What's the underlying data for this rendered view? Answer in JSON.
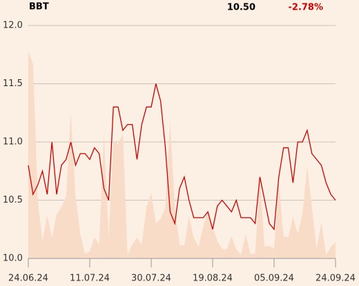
{
  "chart_data": {
    "type": "line",
    "header": {
      "symbol": "BBT",
      "last": "10.50",
      "change": "-2.78%"
    },
    "categories": [
      "24.06.24",
      null,
      null,
      null,
      null,
      null,
      null,
      null,
      null,
      null,
      null,
      null,
      null,
      "11.07.24",
      null,
      null,
      null,
      null,
      null,
      null,
      null,
      null,
      null,
      null,
      null,
      null,
      "30.07.24",
      null,
      null,
      null,
      null,
      null,
      null,
      null,
      null,
      null,
      null,
      null,
      null,
      "19.08.24",
      null,
      null,
      null,
      null,
      null,
      null,
      null,
      null,
      null,
      null,
      null,
      null,
      "05.09.24",
      null,
      null,
      null,
      null,
      null,
      null,
      null,
      null,
      null,
      null,
      null,
      null,
      "24.09.24"
    ],
    "series": [
      {
        "color": "#f9dcc8",
        "fill": true,
        "values": [
          11.78,
          11.67,
          10.5,
          10.15,
          10.37,
          10.18,
          10.38,
          10.44,
          10.53,
          11.26,
          10.53,
          10.21,
          10.04,
          10.06,
          10.18,
          10.12,
          11.08,
          10.18,
          11.01,
          10.98,
          11.07,
          10.03,
          10.12,
          10.18,
          10.12,
          10.44,
          10.56,
          10.3,
          10.34,
          10.44,
          11.17,
          10.44,
          10.12,
          10.11,
          10.36,
          10.18,
          10.1,
          10.27,
          10.41,
          10.27,
          10.15,
          10.08,
          10.08,
          10.19,
          10.08,
          10.03,
          10.21,
          10.04,
          10.04,
          10.68,
          10.1,
          10.11,
          10.08,
          10.65,
          10.19,
          10.18,
          10.36,
          10.21,
          10.38,
          10.79,
          10.44,
          10.08,
          10.31,
          10.03,
          10.1,
          10.14
        ]
      },
      {
        "color": "#cc0000",
        "fill": false,
        "values": [
          10.8,
          10.55,
          10.63,
          10.75,
          10.55,
          11.0,
          10.55,
          10.8,
          10.85,
          11.0,
          10.8,
          10.9,
          10.9,
          10.85,
          10.95,
          10.9,
          10.6,
          10.5,
          11.3,
          11.3,
          11.1,
          11.15,
          11.15,
          10.85,
          11.15,
          11.3,
          11.3,
          11.5,
          11.35,
          10.95,
          10.4,
          10.3,
          10.6,
          10.7,
          10.5,
          10.35,
          10.35,
          10.35,
          10.4,
          10.25,
          10.45,
          10.5,
          10.45,
          10.4,
          10.5,
          10.35,
          10.35,
          10.35,
          10.3,
          10.7,
          10.5,
          10.3,
          10.25,
          10.7,
          10.95,
          10.95,
          10.65,
          11.0,
          11.0,
          11.1,
          10.9,
          10.85,
          10.8,
          10.65,
          10.55,
          10.5
        ]
      }
    ],
    "ylim": [
      10.0,
      12.0
    ],
    "yticks": [
      {
        "value": 10,
        "label": "10.0"
      },
      {
        "value": 10.5,
        "label": "10.5"
      },
      {
        "value": 11,
        "label": "11.0"
      },
      {
        "value": 11.5,
        "label": "11.5"
      },
      {
        "value": 12,
        "label": "12.0"
      }
    ],
    "grid": true
  }
}
